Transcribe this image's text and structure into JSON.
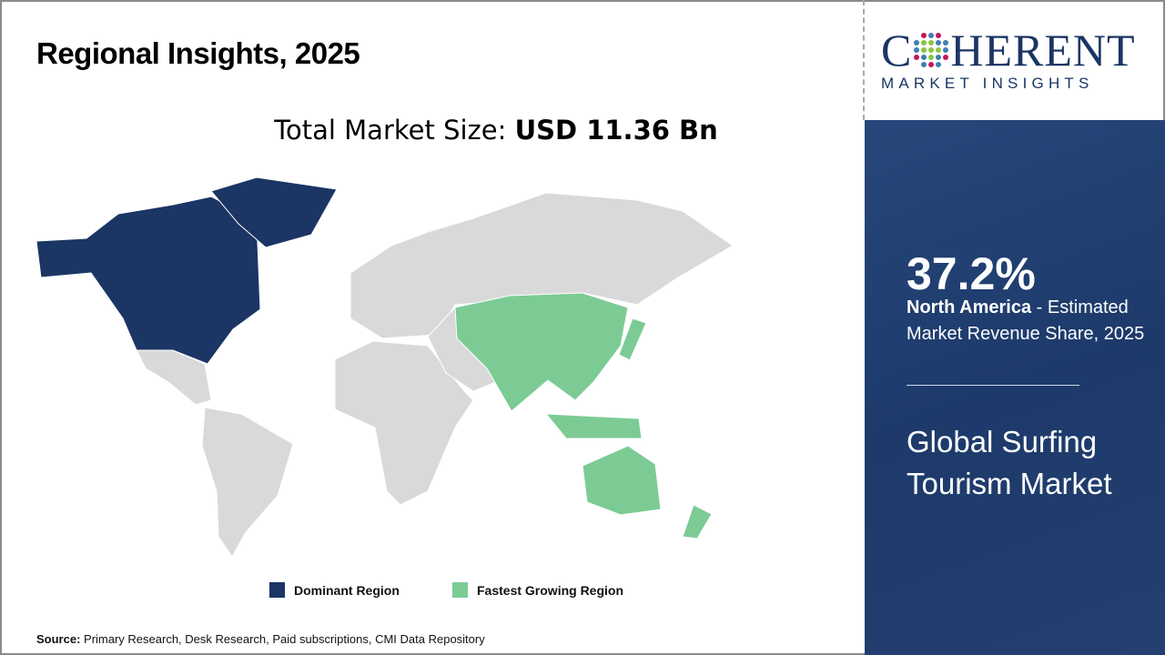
{
  "title": "Regional Insights, 2025",
  "total_market": {
    "label": "Total Market Size: ",
    "value": "USD 11.36 Bn"
  },
  "legend": [
    {
      "label": "Dominant Region",
      "color": "#1b3564"
    },
    {
      "label": "Fastest Growing Region",
      "color": "#7ccb95"
    }
  ],
  "map": {
    "dominant_region": "North America",
    "fastest_growing_region": "Asia Pacific",
    "other_color": "#d9d9d9"
  },
  "source": {
    "label": "Source:",
    "text": " Primary Research, Desk Research, Paid subscriptions, CMI Data Repository"
  },
  "logo": {
    "line1_pre": "C",
    "line1_post": "HERENT",
    "line2": "MARKET INSIGHTS"
  },
  "panel": {
    "percent": "37.2%",
    "region": "North America",
    "desc": " - Estimated Market Revenue Share, 2025",
    "market": "Global Surfing Tourism Market",
    "bg_color": "#1d3a6b"
  }
}
